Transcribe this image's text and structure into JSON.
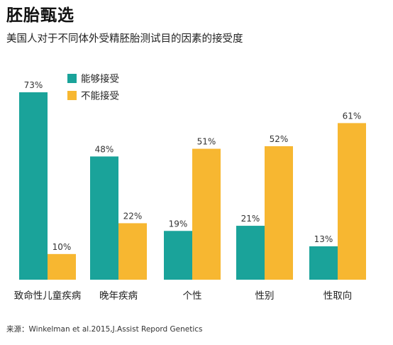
{
  "header": {
    "title": "胚胎甄选",
    "subtitle": "美国人对于不同体外受精胚胎测试目的因素的接受度"
  },
  "footer": {
    "source": "来源：Winkelman et al.2015,J.Assist Repord Genetics"
  },
  "chart_data": {
    "type": "bar",
    "categories": [
      "致命性儿童疾病",
      "晚年疾病",
      "个性",
      "性别",
      "性取向"
    ],
    "series": [
      {
        "name": "能够接受",
        "values": [
          73,
          48,
          19,
          21,
          13
        ],
        "labels": [
          "73%",
          "48%",
          "19%",
          "21%",
          "13%"
        ],
        "color": "#1aa39a"
      },
      {
        "name": "不能接受",
        "values": [
          10,
          22,
          51,
          52,
          61
        ],
        "labels": [
          "10%",
          "22%",
          "51%",
          "52%",
          "61%"
        ],
        "color": "#f7b731"
      }
    ],
    "ylim": [
      0,
      73
    ],
    "grid": false,
    "legend": "top-center",
    "title": "",
    "xlabel": "",
    "ylabel": ""
  }
}
